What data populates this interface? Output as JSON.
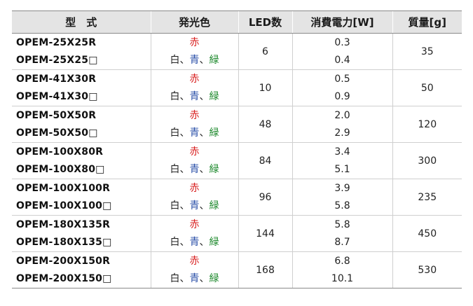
{
  "headers": {
    "model": "型　式",
    "color": "発光色",
    "led": "LED数",
    "power": "消費電力[W]",
    "mass": "質量[g]"
  },
  "colors": {
    "red": "#d81e1e",
    "blue": "#2a4fa8",
    "green": "#1f8a2e",
    "header_bg": "#e4e4e4"
  },
  "rows": [
    {
      "model_r": "OPEM-25X25R",
      "model_x": "OPEM-25X25□",
      "led": "6",
      "power_r": "0.3",
      "power_x": "0.4",
      "mass": "35"
    },
    {
      "model_r": "OPEM-41X30R",
      "model_x": "OPEM-41X30□",
      "led": "10",
      "power_r": "0.5",
      "power_x": "0.9",
      "mass": "50"
    },
    {
      "model_r": "OPEM-50X50R",
      "model_x": "OPEM-50X50□",
      "led": "48",
      "power_r": "2.0",
      "power_x": "2.9",
      "mass": "120"
    },
    {
      "model_r": "OPEM-100X80R",
      "model_x": "OPEM-100X80□",
      "led": "84",
      "power_r": "3.4",
      "power_x": "5.1",
      "mass": "300"
    },
    {
      "model_r": "OPEM-100X100R",
      "model_x": "OPEM-100X100□",
      "led": "96",
      "power_r": "3.9",
      "power_x": "5.8",
      "mass": "235"
    },
    {
      "model_r": "OPEM-180X135R",
      "model_x": "OPEM-180X135□",
      "led": "144",
      "power_r": "5.8",
      "power_x": "8.7",
      "mass": "450"
    },
    {
      "model_r": "OPEM-200X150R",
      "model_x": "OPEM-200X150□",
      "led": "168",
      "power_r": "6.8",
      "power_x": "10.1",
      "mass": "530"
    }
  ],
  "color_labels": {
    "red": "赤",
    "white": "白",
    "sep": "、",
    "blue": "青",
    "green": "緑"
  }
}
